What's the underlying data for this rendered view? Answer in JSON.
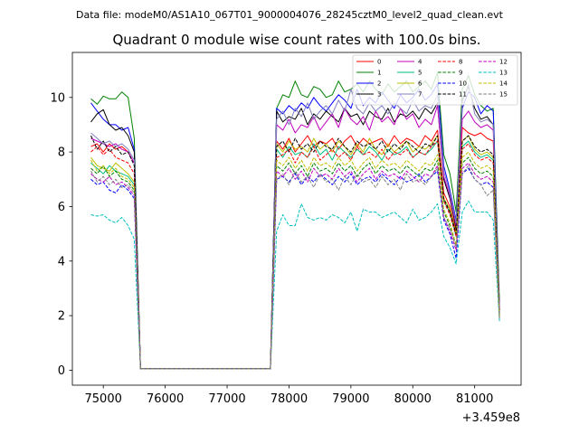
{
  "header": {
    "data_file_label": "Data file: modeM0/AS1A10_067T01_9000004076_28245cztM0_level2_quad_clean.evt"
  },
  "chart_data": {
    "type": "line",
    "title": "Quadrant 0 module wise count rates with 100.0s bins.",
    "xlabel": "",
    "ylabel": "",
    "x_offset_label": "+3.459e8",
    "xlim": [
      74500,
      81750
    ],
    "ylim": [
      -0.55,
      11.65
    ],
    "x_ticks": [
      75000,
      76000,
      77000,
      78000,
      79000,
      80000,
      81000
    ],
    "y_ticks": [
      0,
      2,
      4,
      6,
      8,
      10
    ],
    "legend_position": "top-right",
    "x": [
      74800,
      74900,
      75000,
      75100,
      75200,
      75300,
      75400,
      75500,
      75600,
      75700,
      75800,
      75900,
      76000,
      76100,
      76200,
      76300,
      76400,
      76500,
      76600,
      76700,
      76800,
      76900,
      77000,
      77100,
      77200,
      77300,
      77400,
      77500,
      77600,
      77700,
      77800,
      77900,
      78000,
      78100,
      78200,
      78300,
      78400,
      78500,
      78600,
      78700,
      78800,
      78900,
      79000,
      79100,
      79200,
      79300,
      79400,
      79500,
      79600,
      79700,
      79800,
      79900,
      80000,
      80100,
      80200,
      80300,
      80400,
      80500,
      80600,
      80700,
      80800,
      80900,
      81000,
      81100,
      81200,
      81300,
      81400
    ],
    "series": [
      {
        "name": "0",
        "color": "#ff0000",
        "dash": "solid",
        "values": [
          8.2,
          8.3,
          8.0,
          8.3,
          8.1,
          8.2,
          8.0,
          7.6,
          0.05,
          0.05,
          0.05,
          0.05,
          0.05,
          0.05,
          0.05,
          0.05,
          0.05,
          0.05,
          0.05,
          0.05,
          0.05,
          0.05,
          0.05,
          0.05,
          0.05,
          0.05,
          0.05,
          0.05,
          0.05,
          0.05,
          8.4,
          8.1,
          8.5,
          8.0,
          8.3,
          8.6,
          8.2,
          8.4,
          8.3,
          8.5,
          8.1,
          8.4,
          8.6,
          8.2,
          8.5,
          8.3,
          8.4,
          8.5,
          8.2,
          8.6,
          8.3,
          8.5,
          8.4,
          8.2,
          8.6,
          8.4,
          8.8,
          6.5,
          6.0,
          5.1,
          8.9,
          8.7,
          8.6,
          8.7,
          8.5,
          8.4,
          2.3
        ]
      },
      {
        "name": "1",
        "color": "#008000",
        "dash": "solid",
        "values": [
          9.95,
          9.75,
          10.05,
          9.95,
          9.95,
          10.2,
          10.0,
          8.5,
          0.05,
          0.05,
          0.05,
          0.05,
          0.05,
          0.05,
          0.05,
          0.05,
          0.05,
          0.05,
          0.05,
          0.05,
          0.05,
          0.05,
          0.05,
          0.05,
          0.05,
          0.05,
          0.05,
          0.05,
          0.05,
          0.05,
          9.6,
          10.1,
          10.0,
          10.6,
          10.1,
          10.0,
          10.4,
          10.3,
          10.0,
          10.1,
          10.6,
          10.2,
          10.3,
          10.5,
          10.2,
          10.6,
          10.3,
          10.1,
          10.5,
          10.2,
          10.4,
          10.6,
          10.2,
          10.4,
          10.6,
          10.3,
          10.9,
          7.9,
          7.2,
          5.8,
          10.3,
          10.8,
          10.1,
          9.7,
          9.5,
          9.6,
          2.5
        ]
      },
      {
        "name": "2",
        "color": "#0000ff",
        "dash": "solid",
        "values": [
          9.8,
          9.5,
          9.2,
          9.0,
          9.0,
          8.8,
          8.9,
          8.1,
          0.05,
          0.05,
          0.05,
          0.05,
          0.05,
          0.05,
          0.05,
          0.05,
          0.05,
          0.05,
          0.05,
          0.05,
          0.05,
          0.05,
          0.05,
          0.05,
          0.05,
          0.05,
          0.05,
          0.05,
          0.05,
          0.05,
          9.6,
          9.4,
          9.7,
          9.5,
          9.8,
          9.6,
          10.0,
          9.7,
          9.5,
          9.8,
          10.1,
          9.9,
          9.6,
          10.3,
          9.7,
          10.0,
          9.8,
          10.2,
          9.9,
          9.6,
          10.1,
          9.8,
          10.0,
          10.3,
          9.9,
          10.1,
          10.5,
          7.5,
          6.6,
          5.5,
          9.6,
          10.2,
          10.0,
          9.4,
          9.7,
          9.5,
          2.1
        ]
      },
      {
        "name": "3",
        "color": "#000000",
        "dash": "solid",
        "values": [
          9.1,
          9.4,
          9.55,
          9.0,
          8.8,
          8.9,
          8.6,
          8.0,
          0.05,
          0.05,
          0.05,
          0.05,
          0.05,
          0.05,
          0.05,
          0.05,
          0.05,
          0.05,
          0.05,
          0.05,
          0.05,
          0.05,
          0.05,
          0.05,
          0.05,
          0.05,
          0.05,
          0.05,
          0.05,
          0.05,
          9.5,
          9.1,
          9.3,
          9.2,
          9.6,
          9.0,
          9.4,
          9.2,
          9.5,
          9.3,
          9.1,
          9.6,
          9.3,
          9.4,
          9.0,
          9.5,
          9.3,
          9.2,
          9.6,
          9.1,
          9.4,
          9.3,
          9.5,
          9.2,
          9.6,
          9.4,
          9.8,
          7.0,
          6.3,
          5.2,
          9.9,
          10.4,
          9.6,
          9.2,
          9.3,
          9.0,
          2.2
        ]
      },
      {
        "name": "4",
        "color": "#bf00bf",
        "dash": "solid",
        "values": [
          8.5,
          8.4,
          8.3,
          8.2,
          8.3,
          8.1,
          8.0,
          7.6,
          0.05,
          0.05,
          0.05,
          0.05,
          0.05,
          0.05,
          0.05,
          0.05,
          0.05,
          0.05,
          0.05,
          0.05,
          0.05,
          0.05,
          0.05,
          0.05,
          0.05,
          0.05,
          0.05,
          0.05,
          0.05,
          0.05,
          9.0,
          8.8,
          9.2,
          8.7,
          9.0,
          8.9,
          9.3,
          8.8,
          9.1,
          9.4,
          8.9,
          9.6,
          9.2,
          9.0,
          9.3,
          8.8,
          9.5,
          9.1,
          9.3,
          9.0,
          9.6,
          9.2,
          9.4,
          8.9,
          9.2,
          9.0,
          9.7,
          7.1,
          6.4,
          5.3,
          9.2,
          9.5,
          9.1,
          8.9,
          9.0,
          8.8,
          2.2
        ]
      },
      {
        "name": "5",
        "color": "#00bf80",
        "dash": "solid",
        "values": [
          7.6,
          7.4,
          7.2,
          7.5,
          7.3,
          7.2,
          7.1,
          6.8,
          0.05,
          0.05,
          0.05,
          0.05,
          0.05,
          0.05,
          0.05,
          0.05,
          0.05,
          0.05,
          0.05,
          0.05,
          0.05,
          0.05,
          0.05,
          0.05,
          0.05,
          0.05,
          0.05,
          0.05,
          0.05,
          0.05,
          8.1,
          7.8,
          8.2,
          7.9,
          8.0,
          7.8,
          8.3,
          7.9,
          8.1,
          7.7,
          8.2,
          8.0,
          7.8,
          8.1,
          7.9,
          8.2,
          8.0,
          7.7,
          8.1,
          7.9,
          8.0,
          8.2,
          7.8,
          8.0,
          7.9,
          8.1,
          8.4,
          6.2,
          5.8,
          4.9,
          8.2,
          8.4,
          8.0,
          7.8,
          7.9,
          7.7,
          2.0
        ]
      },
      {
        "name": "6",
        "color": "#bfbf00",
        "dash": "solid",
        "values": [
          7.8,
          7.5,
          7.4,
          7.3,
          7.6,
          7.4,
          7.2,
          6.9,
          0.05,
          0.05,
          0.05,
          0.05,
          0.05,
          0.05,
          0.05,
          0.05,
          0.05,
          0.05,
          0.05,
          0.05,
          0.05,
          0.05,
          0.05,
          0.05,
          0.05,
          0.05,
          0.05,
          0.05,
          0.05,
          0.05,
          8.3,
          8.0,
          8.4,
          8.1,
          8.2,
          8.0,
          8.5,
          8.1,
          8.3,
          8.0,
          8.4,
          8.2,
          7.9,
          8.3,
          8.0,
          8.5,
          8.1,
          7.9,
          8.3,
          8.0,
          8.2,
          8.4,
          8.0,
          8.2,
          8.1,
          8.3,
          8.6,
          6.3,
          5.9,
          5.0,
          8.4,
          8.6,
          8.1,
          7.9,
          8.0,
          7.8,
          2.0
        ]
      },
      {
        "name": "7",
        "color": "#8080bf",
        "dash": "solid",
        "values": [
          8.7,
          8.5,
          8.3,
          8.4,
          8.2,
          8.3,
          8.1,
          7.7,
          0.05,
          0.05,
          0.05,
          0.05,
          0.05,
          0.05,
          0.05,
          0.05,
          0.05,
          0.05,
          0.05,
          0.05,
          0.05,
          0.05,
          0.05,
          0.05,
          0.05,
          0.05,
          0.05,
          0.05,
          0.05,
          0.05,
          9.2,
          9.5,
          9.0,
          9.6,
          9.3,
          9.8,
          9.2,
          9.5,
          9.7,
          9.4,
          9.9,
          9.5,
          10.3,
          9.6,
          9.4,
          9.8,
          9.5,
          9.7,
          9.4,
          9.8,
          9.6,
          9.4,
          9.9,
          9.5,
          9.7,
          9.6,
          10.1,
          7.3,
          6.5,
          5.4,
          9.8,
          10.5,
          9.4,
          9.1,
          9.2,
          9.0,
          2.1
        ]
      },
      {
        "name": "8",
        "color": "#ff0000",
        "dash": "dashed",
        "values": [
          8.0,
          8.2,
          7.9,
          8.1,
          7.8,
          7.7,
          7.6,
          7.2,
          0.05,
          0.05,
          0.05,
          0.05,
          0.05,
          0.05,
          0.05,
          0.05,
          0.05,
          0.05,
          0.05,
          0.05,
          0.05,
          0.05,
          0.05,
          0.05,
          0.05,
          0.05,
          0.05,
          0.05,
          0.05,
          0.05,
          7.8,
          7.9,
          8.1,
          7.6,
          8.0,
          7.8,
          8.2,
          7.7,
          7.9,
          8.1,
          7.8,
          8.0,
          7.7,
          8.2,
          7.9,
          8.0,
          7.8,
          8.1,
          7.7,
          8.0,
          7.9,
          8.1,
          7.8,
          8.0,
          7.9,
          8.2,
          8.4,
          6.2,
          5.7,
          4.9,
          8.1,
          8.3,
          7.9,
          7.7,
          7.8,
          7.6,
          2.0
        ]
      },
      {
        "name": "9",
        "color": "#008000",
        "dash": "dashed",
        "values": [
          7.4,
          7.2,
          7.5,
          7.1,
          7.3,
          7.0,
          6.9,
          6.6,
          0.05,
          0.05,
          0.05,
          0.05,
          0.05,
          0.05,
          0.05,
          0.05,
          0.05,
          0.05,
          0.05,
          0.05,
          0.05,
          0.05,
          0.05,
          0.05,
          0.05,
          0.05,
          0.05,
          0.05,
          0.05,
          0.05,
          7.5,
          7.3,
          7.6,
          7.2,
          7.5,
          7.1,
          7.6,
          7.3,
          7.4,
          7.2,
          7.6,
          7.3,
          7.5,
          7.1,
          7.4,
          7.6,
          7.2,
          7.5,
          7.3,
          7.4,
          7.2,
          7.5,
          7.3,
          7.1,
          7.4,
          7.3,
          7.7,
          5.8,
          5.3,
          4.6,
          7.6,
          7.8,
          7.4,
          7.2,
          7.3,
          7.1,
          1.9
        ]
      },
      {
        "name": "10",
        "color": "#0000ff",
        "dash": "dashed",
        "values": [
          7.0,
          6.8,
          6.9,
          6.6,
          6.5,
          6.8,
          6.6,
          6.3,
          0.05,
          0.05,
          0.05,
          0.05,
          0.05,
          0.05,
          0.05,
          0.05,
          0.05,
          0.05,
          0.05,
          0.05,
          0.05,
          0.05,
          0.05,
          0.05,
          0.05,
          0.05,
          0.05,
          0.05,
          0.05,
          0.05,
          7.0,
          7.1,
          6.9,
          7.2,
          6.8,
          7.1,
          6.9,
          7.2,
          7.0,
          6.8,
          7.1,
          6.9,
          7.2,
          6.8,
          7.0,
          7.1,
          6.9,
          7.2,
          7.0,
          6.8,
          7.1,
          6.9,
          7.0,
          7.2,
          6.9,
          7.1,
          7.3,
          5.5,
          5.0,
          4.1,
          7.2,
          7.4,
          7.0,
          6.8,
          6.9,
          6.7,
          1.9
        ]
      },
      {
        "name": "11",
        "color": "#000000",
        "dash": "dashed",
        "values": [
          8.6,
          8.1,
          8.4,
          8.0,
          8.2,
          7.9,
          8.0,
          7.5,
          0.05,
          0.05,
          0.05,
          0.05,
          0.05,
          0.05,
          0.05,
          0.05,
          0.05,
          0.05,
          0.05,
          0.05,
          0.05,
          0.05,
          0.05,
          0.05,
          0.05,
          0.05,
          0.05,
          0.05,
          0.05,
          0.05,
          8.2,
          8.4,
          8.0,
          8.5,
          8.1,
          8.3,
          8.0,
          8.4,
          8.2,
          8.1,
          8.5,
          8.2,
          8.0,
          8.4,
          8.2,
          8.3,
          8.1,
          8.4,
          8.0,
          8.3,
          8.1,
          8.4,
          8.2,
          8.0,
          8.3,
          8.2,
          8.6,
          6.3,
          5.8,
          5.0,
          8.4,
          8.6,
          8.2,
          8.0,
          8.1,
          7.9,
          2.0
        ]
      },
      {
        "name": "12",
        "color": "#bf00bf",
        "dash": "dashed",
        "values": [
          7.2,
          7.0,
          6.9,
          7.1,
          6.8,
          6.9,
          6.7,
          6.4,
          0.05,
          0.05,
          0.05,
          0.05,
          0.05,
          0.05,
          0.05,
          0.05,
          0.05,
          0.05,
          0.05,
          0.05,
          0.05,
          0.05,
          0.05,
          0.05,
          0.05,
          0.05,
          0.05,
          0.05,
          0.05,
          0.05,
          7.3,
          7.1,
          7.4,
          7.0,
          7.3,
          6.9,
          7.4,
          7.1,
          7.2,
          7.0,
          7.4,
          7.1,
          7.3,
          6.9,
          7.2,
          7.4,
          7.0,
          7.3,
          7.1,
          7.2,
          7.0,
          7.3,
          7.1,
          6.9,
          7.2,
          7.1,
          7.5,
          5.6,
          5.1,
          4.4,
          7.4,
          7.6,
          7.2,
          7.0,
          7.1,
          6.9,
          1.9
        ]
      },
      {
        "name": "13",
        "color": "#00bfbf",
        "dash": "dashed",
        "values": [
          5.7,
          5.65,
          5.7,
          5.5,
          5.4,
          5.6,
          5.3,
          4.8,
          0.05,
          0.05,
          0.05,
          0.05,
          0.05,
          0.05,
          0.05,
          0.05,
          0.05,
          0.05,
          0.05,
          0.05,
          0.05,
          0.05,
          0.05,
          0.05,
          0.05,
          0.05,
          0.05,
          0.05,
          0.05,
          0.05,
          5.1,
          5.7,
          5.3,
          5.3,
          6.1,
          5.6,
          5.5,
          5.6,
          5.5,
          5.7,
          5.6,
          5.4,
          5.8,
          5.1,
          5.9,
          5.8,
          5.8,
          5.6,
          5.7,
          5.8,
          5.6,
          5.4,
          5.9,
          5.5,
          5.6,
          5.8,
          6.1,
          4.9,
          4.5,
          3.9,
          5.8,
          6.2,
          5.8,
          5.8,
          5.8,
          5.5,
          1.8
        ]
      },
      {
        "name": "14",
        "color": "#bfbf00",
        "dash": "dashed",
        "values": [
          7.7,
          7.3,
          7.5,
          7.2,
          7.4,
          7.1,
          7.0,
          6.7,
          0.05,
          0.05,
          0.05,
          0.05,
          0.05,
          0.05,
          0.05,
          0.05,
          0.05,
          0.05,
          0.05,
          0.05,
          0.05,
          0.05,
          0.05,
          0.05,
          0.05,
          0.05,
          0.05,
          0.05,
          0.05,
          0.05,
          7.7,
          7.5,
          7.8,
          7.4,
          7.7,
          7.3,
          7.8,
          7.5,
          7.6,
          7.4,
          7.8,
          7.5,
          7.7,
          7.3,
          7.6,
          7.8,
          7.4,
          7.7,
          7.5,
          7.6,
          7.4,
          7.7,
          7.5,
          7.3,
          7.6,
          7.5,
          7.9,
          5.9,
          5.4,
          4.6,
          7.8,
          8.0,
          7.6,
          7.4,
          7.5,
          7.3,
          1.9
        ]
      },
      {
        "name": "15",
        "color": "#808080",
        "dash": "dashed",
        "values": [
          7.3,
          6.9,
          7.1,
          6.8,
          7.0,
          6.7,
          6.8,
          6.5,
          0.05,
          0.05,
          0.05,
          0.05,
          0.05,
          0.05,
          0.05,
          0.05,
          0.05,
          0.05,
          0.05,
          0.05,
          0.05,
          0.05,
          0.05,
          0.05,
          0.05,
          0.05,
          0.05,
          0.05,
          0.05,
          0.05,
          7.0,
          7.2,
          6.8,
          7.3,
          6.9,
          7.1,
          6.7,
          7.2,
          6.9,
          7.0,
          6.6,
          7.1,
          6.8,
          7.2,
          6.9,
          7.0,
          6.7,
          7.1,
          6.8,
          7.0,
          6.6,
          7.2,
          6.9,
          7.0,
          6.8,
          7.1,
          7.4,
          5.6,
          5.2,
          4.5,
          7.2,
          7.5,
          7.0,
          6.8,
          6.4,
          6.6,
          1.9
        ]
      }
    ]
  }
}
